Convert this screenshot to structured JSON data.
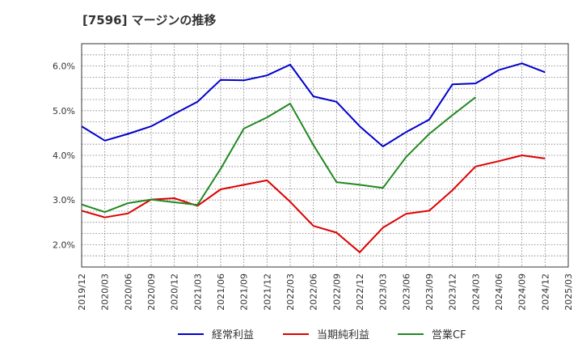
{
  "header": {
    "title": "[7596]  マージンの推移"
  },
  "chart_data": {
    "type": "line",
    "title": "[7596]  マージンの推移",
    "xlabel": "",
    "ylabel": "",
    "categories": [
      "2019/12",
      "2020/03",
      "2020/06",
      "2020/09",
      "2020/12",
      "2021/03",
      "2021/06",
      "2021/09",
      "2021/12",
      "2022/03",
      "2022/06",
      "2022/09",
      "2022/12",
      "2023/03",
      "2023/06",
      "2023/09",
      "2023/12",
      "2024/03",
      "2024/06",
      "2024/09",
      "2024/12",
      "2025/03"
    ],
    "ylim": [
      1.5,
      6.5
    ],
    "yticks": [
      2.0,
      3.0,
      4.0,
      5.0,
      6.0
    ],
    "ytick_labels": [
      "2.0%",
      "3.0%",
      "4.0%",
      "5.0%",
      "6.0%"
    ],
    "grid": true,
    "legend_position": "bottom",
    "series": [
      {
        "name": "経常利益",
        "color": "#0000cc",
        "values": [
          4.65,
          4.33,
          4.48,
          4.65,
          4.93,
          5.2,
          5.69,
          5.68,
          5.79,
          6.03,
          5.32,
          5.2,
          4.65,
          4.2,
          4.52,
          4.8,
          5.59,
          5.61,
          5.91,
          6.06,
          5.86,
          null
        ]
      },
      {
        "name": "当期純利益",
        "color": "#dd0000",
        "values": [
          2.76,
          2.61,
          2.7,
          3.01,
          3.04,
          2.87,
          3.24,
          3.34,
          3.44,
          2.96,
          2.42,
          2.27,
          1.83,
          2.38,
          2.69,
          2.76,
          3.22,
          3.75,
          3.87,
          4.0,
          3.93,
          null
        ]
      },
      {
        "name": "営業CF",
        "color": "#228822",
        "values": [
          2.9,
          2.73,
          2.93,
          3.01,
          2.95,
          2.89,
          3.7,
          4.6,
          4.85,
          5.16,
          4.23,
          3.4,
          3.34,
          3.27,
          3.96,
          4.48,
          4.9,
          5.3,
          null,
          null,
          null,
          null
        ]
      }
    ]
  }
}
